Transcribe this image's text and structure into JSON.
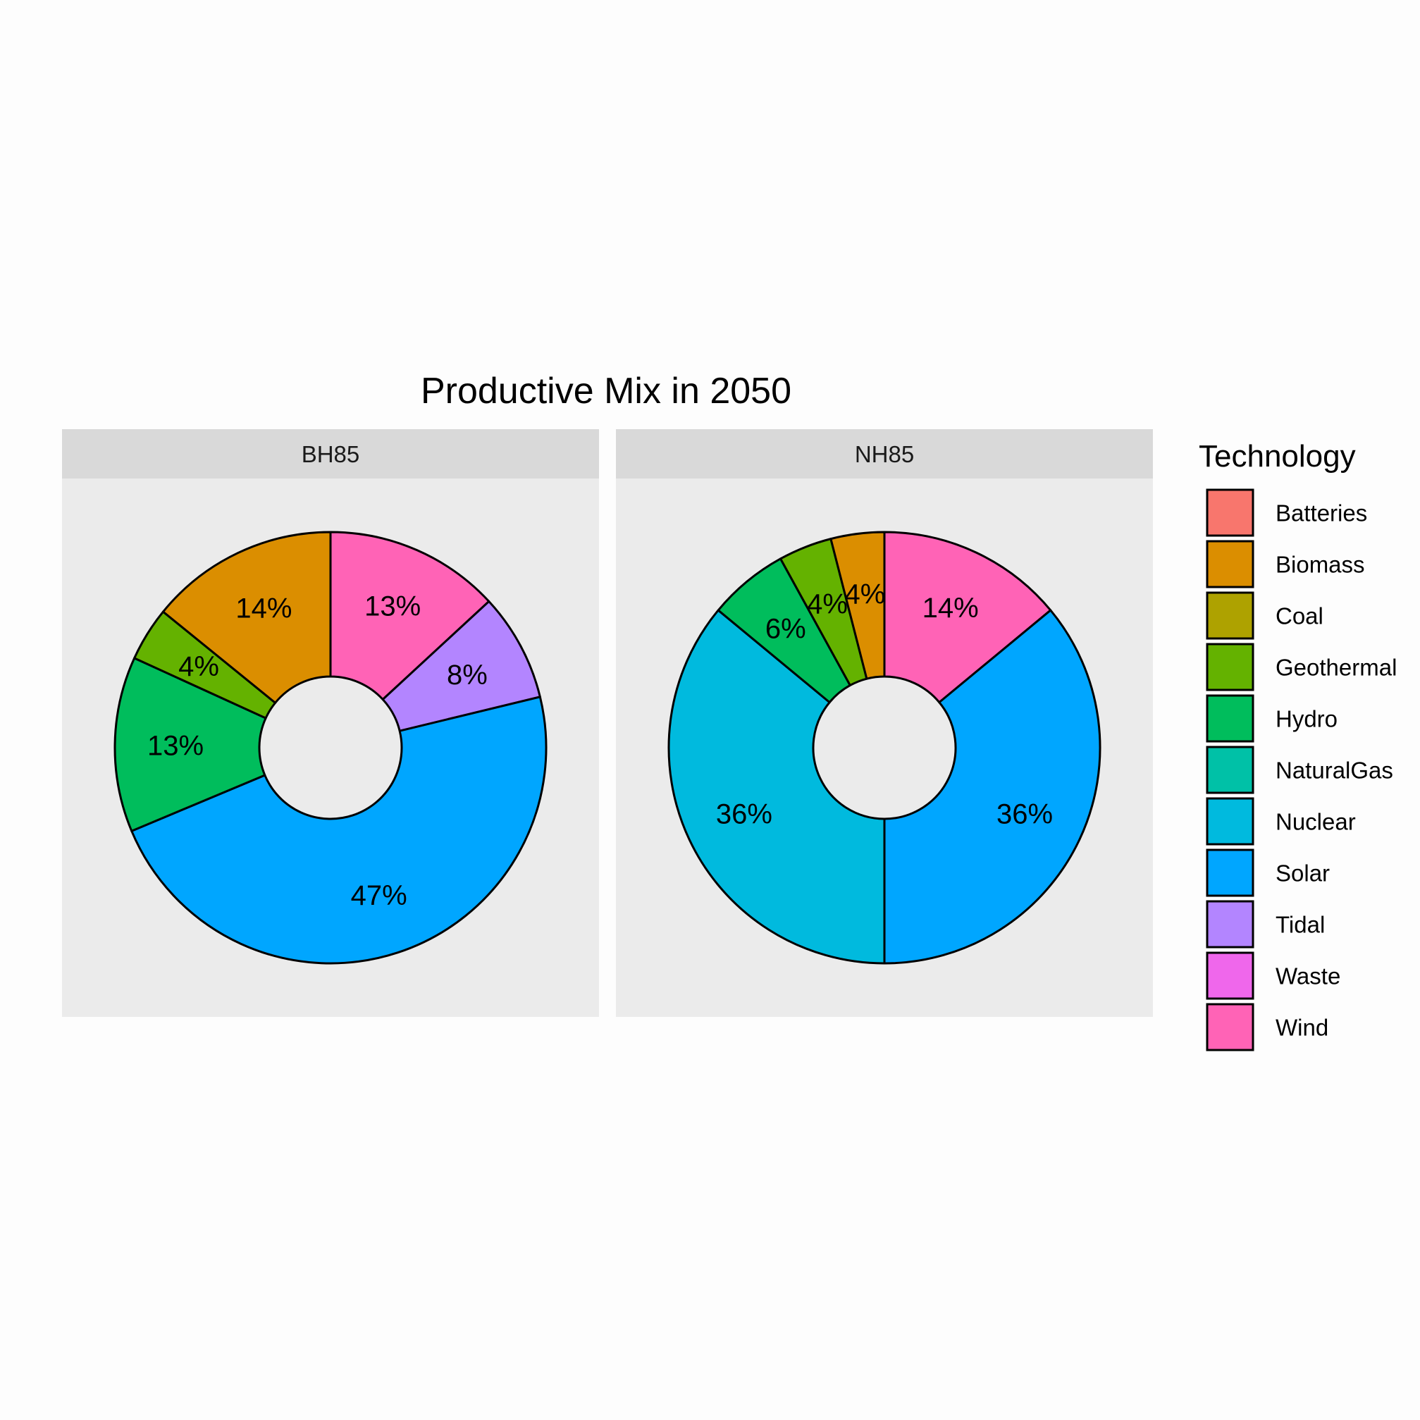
{
  "chart_data": {
    "type": "pie",
    "title": "Productive Mix in 2050",
    "legend": {
      "title": "Technology",
      "position": "right",
      "entries": [
        {
          "name": "Batteries",
          "color": "#F8766D"
        },
        {
          "name": "Biomass",
          "color": "#DB8E00"
        },
        {
          "name": "Coal",
          "color": "#AEA200"
        },
        {
          "name": "Geothermal",
          "color": "#64B200"
        },
        {
          "name": "Hydro",
          "color": "#00BD5C"
        },
        {
          "name": "NaturalGas",
          "color": "#00C1A7"
        },
        {
          "name": "Nuclear",
          "color": "#00BADE"
        },
        {
          "name": "Solar",
          "color": "#00A6FF"
        },
        {
          "name": "Tidal",
          "color": "#B385FF"
        },
        {
          "name": "Waste",
          "color": "#EF67EB"
        },
        {
          "name": "Wind",
          "color": "#FF63B6"
        }
      ]
    },
    "facets": [
      {
        "name": "BH85",
        "slices": [
          {
            "technology": "Wind",
            "value": 13,
            "label": "13%"
          },
          {
            "technology": "Tidal",
            "value": 8,
            "label": "8%"
          },
          {
            "technology": "Solar",
            "value": 47,
            "label": "47%"
          },
          {
            "technology": "Hydro",
            "value": 13,
            "label": "13%"
          },
          {
            "technology": "Geothermal",
            "value": 4,
            "label": "4%"
          },
          {
            "technology": "Biomass",
            "value": 14,
            "label": "14%"
          }
        ]
      },
      {
        "name": "NH85",
        "slices": [
          {
            "technology": "Wind",
            "value": 14,
            "label": "14%"
          },
          {
            "technology": "Solar",
            "value": 36,
            "label": "36%"
          },
          {
            "technology": "Nuclear",
            "value": 36,
            "label": "36%"
          },
          {
            "technology": "Hydro",
            "value": 6,
            "label": "6%"
          },
          {
            "technology": "Geothermal",
            "value": 4,
            "label": "4%"
          },
          {
            "technology": "Biomass",
            "value": 4,
            "label": "4%"
          }
        ]
      }
    ],
    "colors": {
      "panel_background": "#EBEBEB",
      "strip_background": "#D9D9D9",
      "page_background": "#FDFDFD",
      "outline": "#000000"
    }
  }
}
